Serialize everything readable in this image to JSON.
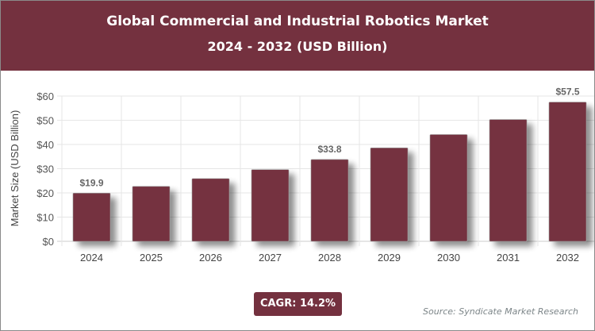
{
  "header": {
    "title": "Global Commercial and Industrial Robotics Market",
    "subtitle": "2024 - 2032 (USD Billion)"
  },
  "cagr_label": "CAGR: 14.2%",
  "source": "Source: Syndicate Market Research",
  "colors": {
    "bar": "#74313f",
    "header": "#74313f"
  },
  "chart_data": {
    "type": "bar",
    "title": "Global Commercial and Industrial Robotics Market",
    "subtitle": "2024 - 2032 (USD Billion)",
    "ylabel": "Market Size (USD Billion)",
    "xlabel": "",
    "categories": [
      "2024",
      "2025",
      "2026",
      "2027",
      "2028",
      "2029",
      "2030",
      "2031",
      "2032"
    ],
    "values": [
      19.9,
      22.7,
      25.9,
      29.6,
      33.8,
      38.6,
      44.1,
      50.3,
      57.5
    ],
    "data_labels": {
      "2024": "$19.9",
      "2028": "$33.8",
      "2032": "$57.5"
    },
    "ylim": [
      0,
      60
    ],
    "yticks": [
      "$0",
      "$10",
      "$20",
      "$30",
      "$40",
      "$50",
      "$60"
    ],
    "grid": true
  }
}
